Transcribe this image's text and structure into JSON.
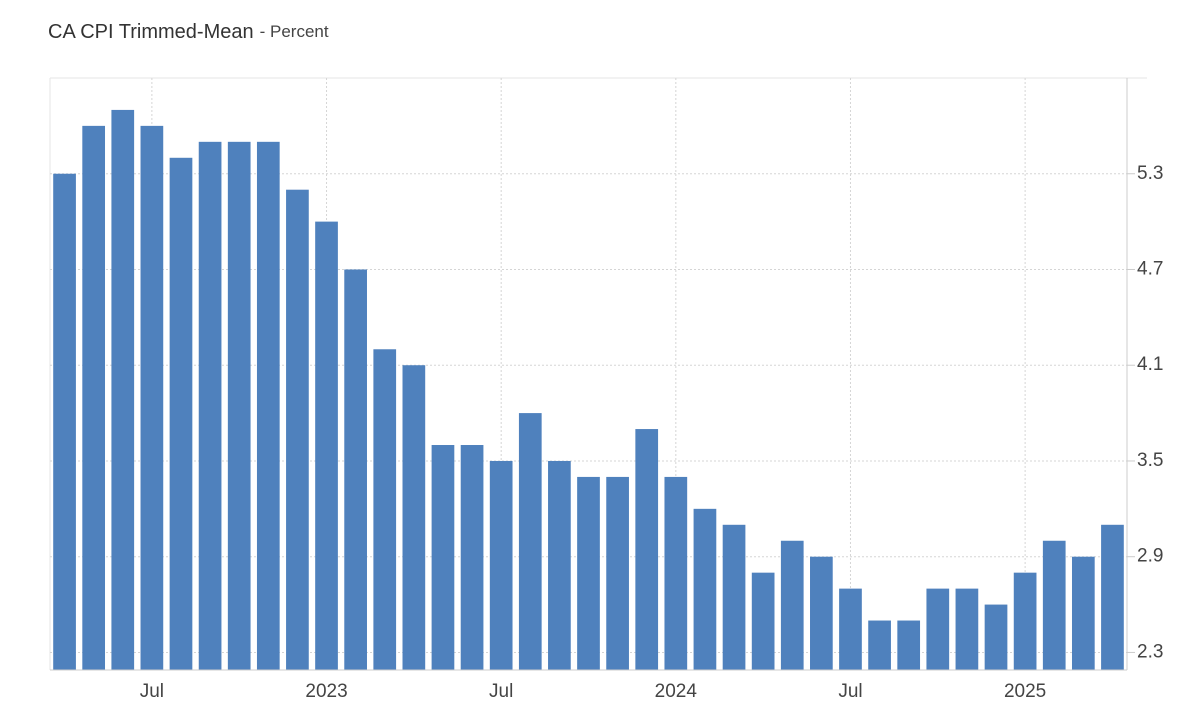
{
  "chart_data": {
    "type": "bar",
    "title": "CA CPI Trimmed-Mean",
    "subtitle": "- Percent",
    "categories": [
      null,
      null,
      null,
      "Jul",
      null,
      null,
      null,
      null,
      null,
      "2023",
      null,
      null,
      null,
      null,
      null,
      "Jul",
      null,
      null,
      null,
      null,
      null,
      "2024",
      null,
      null,
      null,
      null,
      null,
      "Jul",
      null,
      null,
      null,
      null,
      null,
      "2025",
      null,
      null,
      null
    ],
    "values": [
      5.3,
      5.6,
      5.7,
      5.6,
      5.4,
      5.5,
      5.5,
      5.5,
      5.2,
      5.0,
      4.7,
      4.2,
      4.1,
      3.6,
      3.6,
      3.5,
      3.8,
      3.5,
      3.4,
      3.4,
      3.7,
      3.4,
      3.2,
      3.1,
      2.8,
      3.0,
      2.9,
      2.7,
      2.5,
      2.5,
      2.7,
      2.7,
      2.6,
      2.8,
      3.0,
      2.9,
      3.1
    ],
    "color": "#4f81bd",
    "ylim": [
      2.19,
      5.9
    ],
    "yticks": [
      2.3,
      2.9,
      3.5,
      4.1,
      4.7,
      5.3
    ],
    "grid": true
  }
}
